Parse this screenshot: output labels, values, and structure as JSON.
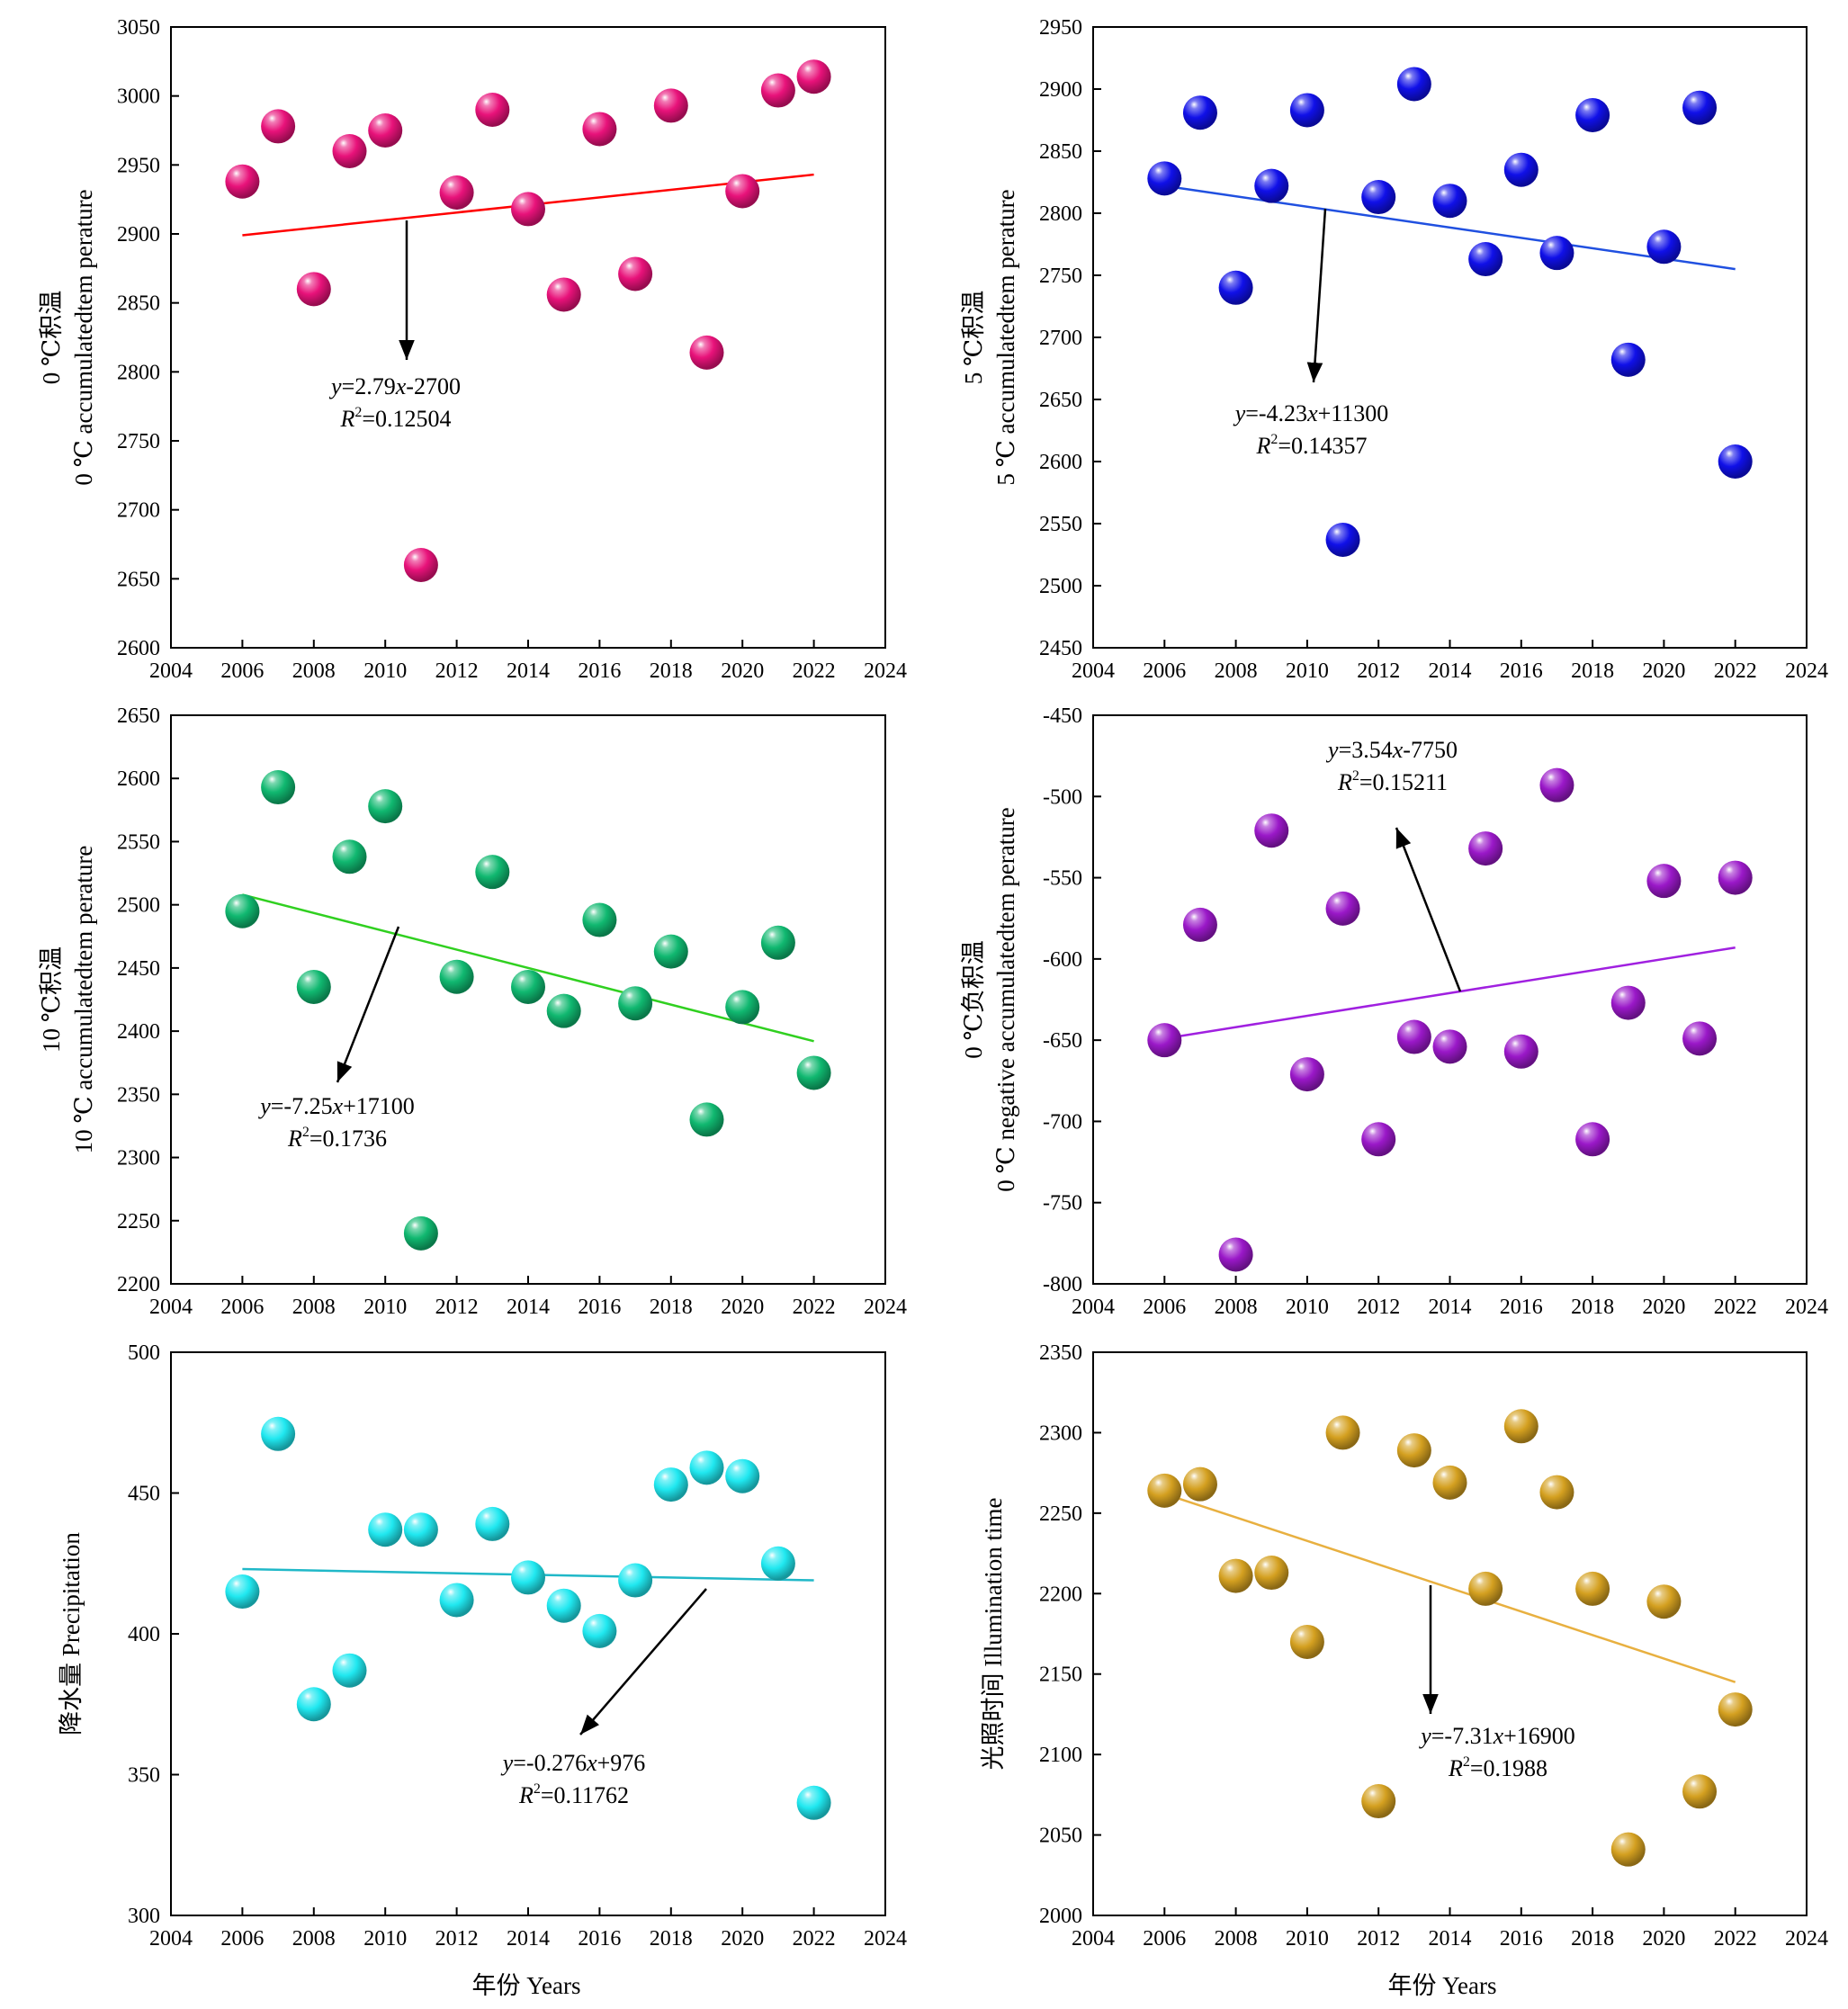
{
  "figure": {
    "xlabel": "年份 Years"
  },
  "chart_data": [
    {
      "type": "scatter",
      "ylabel_cn": "0 ℃积温",
      "ylabel_en": "0 ℃ accumulatedtem perature",
      "xlim": [
        2004,
        2024
      ],
      "ylim": [
        2600,
        3050
      ],
      "xticks": [
        "2004",
        "2006",
        "2008",
        "2010",
        "2012",
        "2014",
        "2016",
        "2018",
        "2020",
        "2022",
        "2024"
      ],
      "yticks": [
        "2600",
        "2650",
        "2700",
        "2750",
        "2800",
        "2850",
        "2900",
        "2950",
        "3000",
        "3050"
      ],
      "color": "#e8127a",
      "trend_color": "#ff0000",
      "x": [
        2006,
        2007,
        2008,
        2009,
        2010,
        2011,
        2012,
        2013,
        2014,
        2015,
        2016,
        2017,
        2018,
        2019,
        2020,
        2021,
        2022
      ],
      "y": [
        2938,
        2978,
        2860,
        2960,
        2975,
        2660,
        2930,
        2990,
        2918,
        2856,
        2976,
        2871,
        2993,
        2814,
        2931,
        3004,
        3014
      ],
      "trend": {
        "x": [
          2006,
          2022
        ],
        "y": [
          2899,
          2943
        ]
      },
      "equation": {
        "prefix": "y",
        "middle": "=2.79",
        "var": "x",
        "suffix": "-2700"
      },
      "r2": {
        "label": "R",
        "sup": "2",
        "value": "=0.12504"
      }
    },
    {
      "type": "scatter",
      "ylabel_cn": "5 ℃积温",
      "ylabel_en": "5 ℃ accumulatedtem perature",
      "xlim": [
        2004,
        2024
      ],
      "ylim": [
        2450,
        2950
      ],
      "xticks": [
        "2004",
        "2006",
        "2008",
        "2010",
        "2012",
        "2014",
        "2016",
        "2018",
        "2020",
        "2022",
        "2024"
      ],
      "yticks": [
        "2450",
        "2500",
        "2550",
        "2600",
        "2650",
        "2700",
        "2750",
        "2800",
        "2850",
        "2900",
        "2950"
      ],
      "color": "#1010e8",
      "trend_color": "#2050e0",
      "x": [
        2006,
        2007,
        2008,
        2009,
        2010,
        2011,
        2012,
        2013,
        2014,
        2015,
        2016,
        2017,
        2018,
        2019,
        2020,
        2021,
        2022
      ],
      "y": [
        2828,
        2881,
        2740,
        2822,
        2883,
        2537,
        2813,
        2904,
        2810,
        2763,
        2835,
        2768,
        2879,
        2682,
        2773,
        2885,
        2600
      ],
      "trend": {
        "x": [
          2006,
          2022
        ],
        "y": [
          2822,
          2755
        ]
      },
      "equation": {
        "prefix": "y",
        "middle": "=-4.23",
        "var": "x",
        "suffix": "+11300"
      },
      "r2": {
        "label": "R",
        "sup": "2",
        "value": "=0.14357"
      }
    },
    {
      "type": "scatter",
      "ylabel_cn": "10 ℃积温",
      "ylabel_en": "10 ℃ accumulatedtem perature",
      "xlim": [
        2004,
        2024
      ],
      "ylim": [
        2200,
        2650
      ],
      "xticks": [
        "2004",
        "2006",
        "2008",
        "2010",
        "2012",
        "2014",
        "2016",
        "2018",
        "2020",
        "2022",
        "2024"
      ],
      "yticks": [
        "2200",
        "2250",
        "2300",
        "2350",
        "2400",
        "2450",
        "2500",
        "2550",
        "2600",
        "2650"
      ],
      "color": "#10b870",
      "trend_color": "#30d020",
      "x": [
        2006,
        2007,
        2008,
        2009,
        2010,
        2011,
        2012,
        2013,
        2014,
        2015,
        2016,
        2017,
        2018,
        2019,
        2020,
        2021,
        2022
      ],
      "y": [
        2495,
        2593,
        2435,
        2538,
        2578,
        2240,
        2443,
        2526,
        2435,
        2416,
        2488,
        2422,
        2463,
        2330,
        2419,
        2470,
        2367
      ],
      "trend": {
        "x": [
          2006,
          2022
        ],
        "y": [
          2508,
          2392
        ]
      },
      "equation": {
        "prefix": "y",
        "middle": "=-7.25",
        "var": "x",
        "suffix": "+17100"
      },
      "r2": {
        "label": "R",
        "sup": "2",
        "value": "=0.1736"
      }
    },
    {
      "type": "scatter",
      "ylabel_cn": "0 ℃负积温",
      "ylabel_en": "0 ℃ negative accumulatedtem perature",
      "xlim": [
        2004,
        2024
      ],
      "ylim": [
        -800,
        -450
      ],
      "xticks": [
        "2004",
        "2006",
        "2008",
        "2010",
        "2012",
        "2014",
        "2016",
        "2018",
        "2020",
        "2022",
        "2024"
      ],
      "yticks": [
        "-800",
        "-750",
        "-700",
        "-650",
        "-600",
        "-550",
        "-500",
        "-450"
      ],
      "color": "#9a18c8",
      "trend_color": "#a020e0",
      "x": [
        2006,
        2007,
        2008,
        2009,
        2010,
        2011,
        2012,
        2013,
        2014,
        2015,
        2016,
        2017,
        2018,
        2019,
        2020,
        2021,
        2022
      ],
      "y": [
        -650,
        -579,
        -782,
        -521,
        -671,
        -569,
        -711,
        -648,
        -654,
        -532,
        -657,
        -493,
        -711,
        -627,
        -552,
        -649,
        -550
      ],
      "trend": {
        "x": [
          2006,
          2022
        ],
        "y": [
          -649,
          -593
        ]
      },
      "equation": {
        "prefix": "y",
        "middle": "=3.54",
        "var": "x",
        "suffix": "-7750"
      },
      "r2": {
        "label": "R",
        "sup": "2",
        "value": "=0.15211"
      }
    },
    {
      "type": "scatter",
      "ylabel_cn": "降水量",
      "ylabel_en": "Precipitation",
      "xlim": [
        2004,
        2024
      ],
      "ylim": [
        300,
        500
      ],
      "xticks": [
        "2004",
        "2006",
        "2008",
        "2010",
        "2012",
        "2014",
        "2016",
        "2018",
        "2020",
        "2022",
        "2024"
      ],
      "yticks": [
        "300",
        "350",
        "400",
        "450",
        "500"
      ],
      "color": "#20e8f0",
      "trend_color": "#20b8c8",
      "x": [
        2006,
        2007,
        2008,
        2009,
        2010,
        2011,
        2012,
        2013,
        2014,
        2015,
        2016,
        2017,
        2018,
        2019,
        2020,
        2021,
        2022
      ],
      "y": [
        415,
        471,
        375,
        387,
        437,
        437,
        412,
        439,
        420,
        410,
        401,
        419,
        453,
        459,
        456,
        425,
        340
      ],
      "trend": {
        "x": [
          2006,
          2022
        ],
        "y": [
          423,
          419
        ]
      },
      "equation": {
        "prefix": "y",
        "middle": "=-0.276",
        "var": "x",
        "suffix": "+976"
      },
      "r2": {
        "label": "R",
        "sup": "2",
        "value": "=0.11762"
      }
    },
    {
      "type": "scatter",
      "ylabel_cn": "光照时间",
      "ylabel_en": "Illumination time",
      "xlim": [
        2004,
        2024
      ],
      "ylim": [
        2000,
        2350
      ],
      "xticks": [
        "2004",
        "2006",
        "2008",
        "2010",
        "2012",
        "2014",
        "2016",
        "2018",
        "2020",
        "2022",
        "2024"
      ],
      "yticks": [
        "2000",
        "2050",
        "2100",
        "2150",
        "2200",
        "2250",
        "2300",
        "2350"
      ],
      "color": "#d4a020",
      "trend_color": "#e8b040",
      "x": [
        2006,
        2007,
        2008,
        2009,
        2010,
        2011,
        2012,
        2013,
        2014,
        2015,
        2016,
        2017,
        2018,
        2019,
        2020,
        2021,
        2022
      ],
      "y": [
        2264,
        2268,
        2211,
        2213,
        2170,
        2300,
        2071,
        2289,
        2269,
        2203,
        2304,
        2263,
        2203,
        2041,
        2195,
        2077,
        2128
      ],
      "trend": {
        "x": [
          2006,
          2022
        ],
        "y": [
          2262,
          2145
        ]
      },
      "equation": {
        "prefix": "y",
        "middle": "=-7.31",
        "var": "x",
        "suffix": "+16900"
      },
      "r2": {
        "label": "R",
        "sup": "2",
        "value": "=0.1988"
      }
    }
  ]
}
